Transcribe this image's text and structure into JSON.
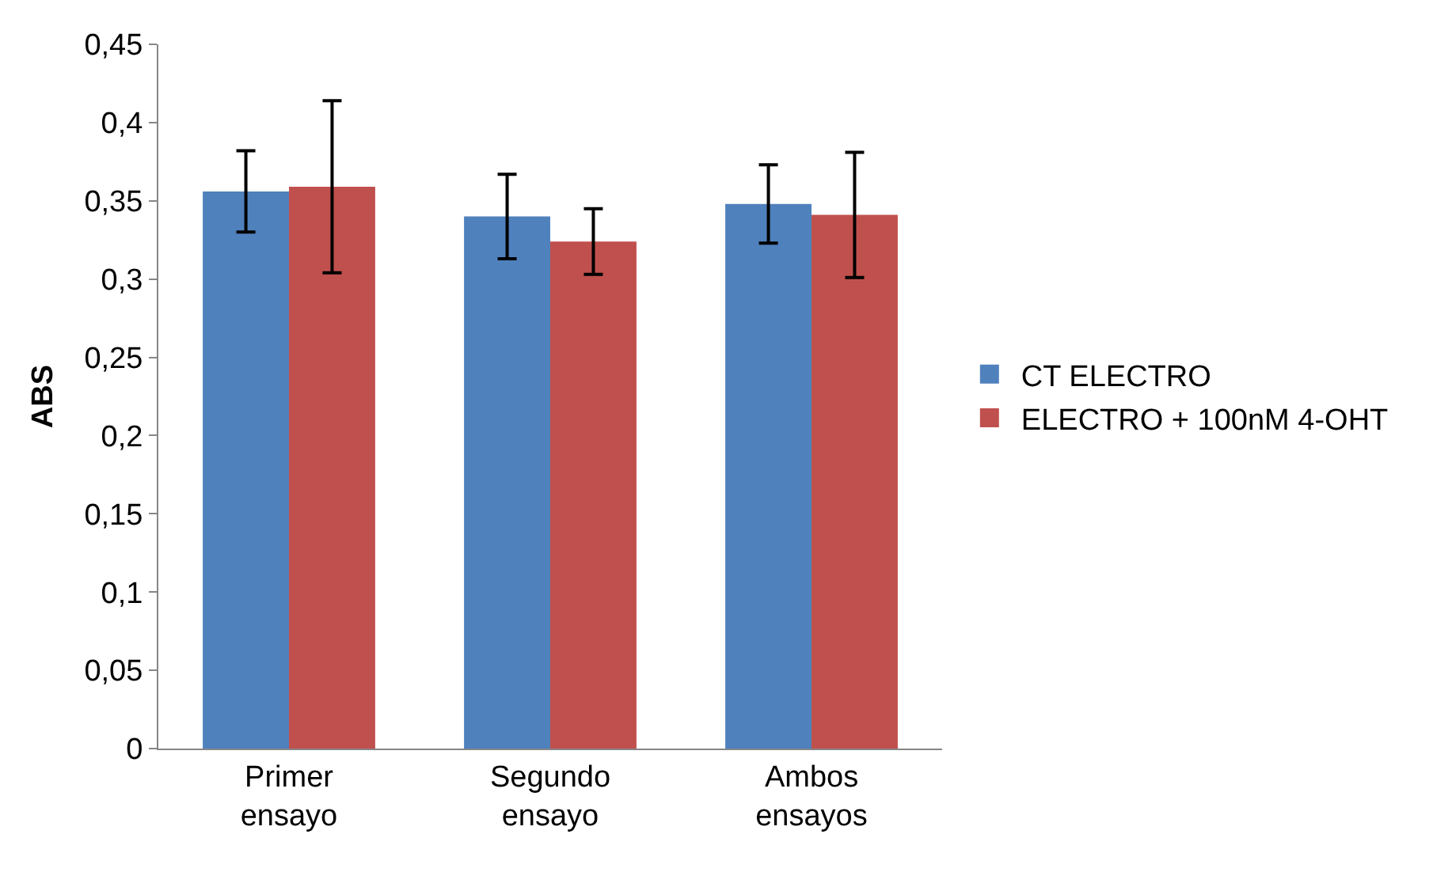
{
  "chart_data": {
    "type": "bar",
    "ylabel": "ABS",
    "categories": [
      "Primer ensayo",
      "Segundo ensayo",
      "Ambos ensayos"
    ],
    "series": [
      {
        "name": "CT ELECTRO",
        "color": "#4f81bd",
        "values": [
          0.356,
          0.34,
          0.348
        ],
        "errors": [
          0.026,
          0.027,
          0.025
        ]
      },
      {
        "name": "ELECTRO + 100nM 4-OHT",
        "color": "#c0504d",
        "values": [
          0.359,
          0.324,
          0.341
        ],
        "errors": [
          0.055,
          0.021,
          0.04
        ]
      }
    ],
    "ylim": [
      0,
      0.45
    ],
    "yticks": [
      {
        "value": 0,
        "label": "0"
      },
      {
        "value": 0.05,
        "label": "0,05"
      },
      {
        "value": 0.1,
        "label": "0,1"
      },
      {
        "value": 0.15,
        "label": "0,15"
      },
      {
        "value": 0.2,
        "label": "0,2"
      },
      {
        "value": 0.25,
        "label": "0,25"
      },
      {
        "value": 0.3,
        "label": "0,3"
      },
      {
        "value": 0.35,
        "label": "0,35"
      },
      {
        "value": 0.4,
        "label": "0,4"
      },
      {
        "value": 0.45,
        "label": "0,45"
      }
    ],
    "grid": false,
    "legend": "right"
  }
}
